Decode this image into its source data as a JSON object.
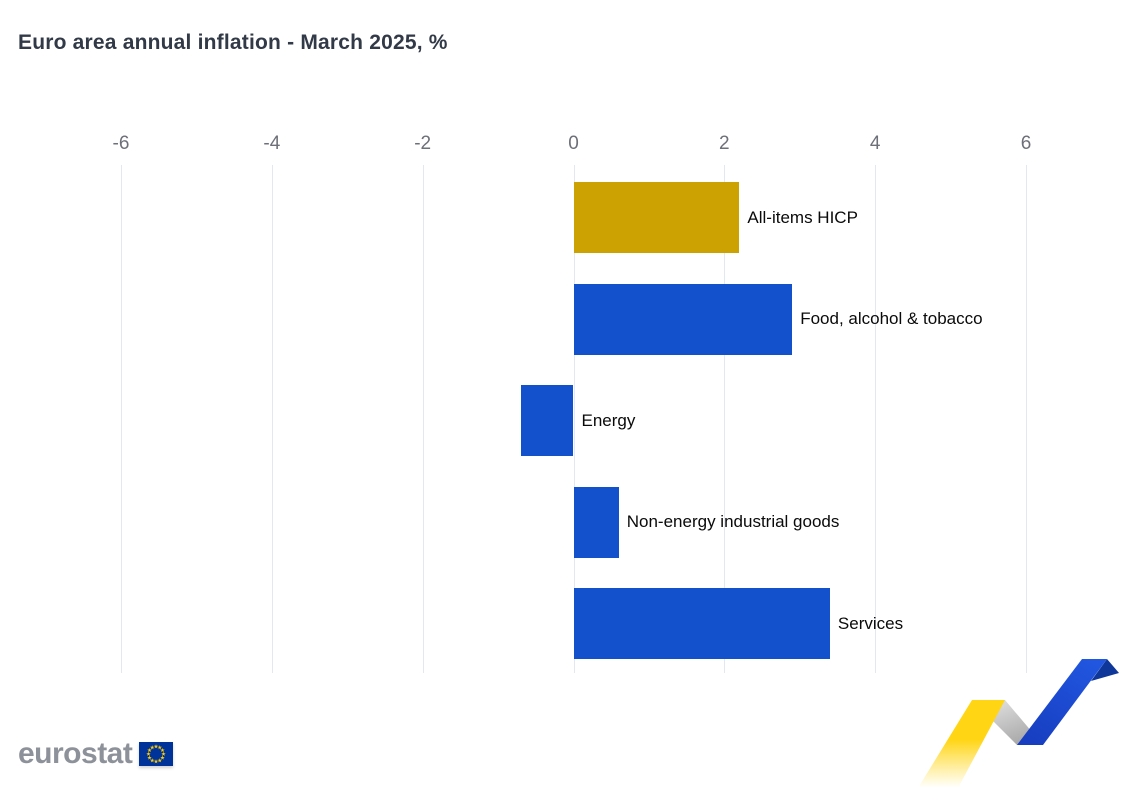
{
  "title": "Euro area annual inflation - March 2025, %",
  "chart_data": {
    "type": "bar",
    "orientation": "horizontal",
    "title": "Euro area annual inflation - March 2025, %",
    "categories": [
      "All-items HICP",
      "Food, alcohol & tobacco",
      "Energy",
      "Non-energy industrial goods",
      "Services"
    ],
    "values": [
      2.2,
      2.9,
      -0.7,
      0.6,
      3.4
    ],
    "bar_color_keys": [
      "gold",
      "blue",
      "blue",
      "blue",
      "blue"
    ],
    "xlim": [
      -6,
      6
    ],
    "x_ticks": [
      -6,
      -4,
      -2,
      0,
      2,
      4,
      6
    ],
    "x_tick_labels": [
      "-6",
      "-4",
      "-2",
      "0",
      "2",
      "4",
      "6"
    ],
    "xlabel": "",
    "ylabel": "",
    "grid": true,
    "axis_position": "top",
    "legend": "none",
    "unit": "%"
  },
  "colors": {
    "background": "#FFFFFF",
    "gold": "#CCA203",
    "blue": "#1350CC",
    "gridline": "#E2E7F2",
    "tick_label": "#6E7079",
    "title_text": "#323A47",
    "bar_label": "#0A0A0A",
    "logo_gray": "#8D9199",
    "flag_blue": "#003399",
    "flag_star_yellow": "#FFCC00",
    "ribbon_yellow": "#FFD514",
    "ribbon_yellow_fade": "#FFFFFF",
    "ribbon_gray_light": "#E9E9E9",
    "ribbon_gray_dark": "#A9A9A9",
    "ribbon_blue_top": "#2156E0",
    "ribbon_blue_bottom": "#173EC0",
    "ribbon_blue_fold": "#0E3799"
  },
  "footer": {
    "logo_text": "eurostat"
  }
}
